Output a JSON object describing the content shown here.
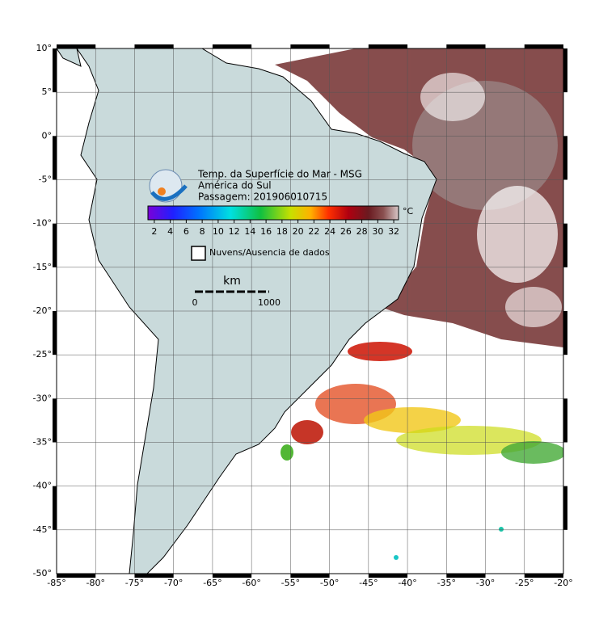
{
  "header": {
    "title": "Temp. da Superfície do Mar - MSG",
    "region": "América do Sul",
    "pass": "Passagem: 201906010715"
  },
  "map": {
    "lon_range": [
      -85,
      -20
    ],
    "lat_range": [
      -50,
      10
    ],
    "lon_ticks": [
      {
        "value": -85,
        "label": "-85°"
      },
      {
        "value": -80,
        "label": "-80°"
      },
      {
        "value": -75,
        "label": "-75°"
      },
      {
        "value": -70,
        "label": "-70°"
      },
      {
        "value": -65,
        "label": "-65°"
      },
      {
        "value": -60,
        "label": "-60°"
      },
      {
        "value": -55,
        "label": "-55°"
      },
      {
        "value": -50,
        "label": "-50°"
      },
      {
        "value": -45,
        "label": "-45°"
      },
      {
        "value": -40,
        "label": "-40°"
      },
      {
        "value": -35,
        "label": "-35°"
      },
      {
        "value": -30,
        "label": "-30°"
      },
      {
        "value": -25,
        "label": "-25°"
      },
      {
        "value": -20,
        "label": "-20°"
      }
    ],
    "lat_ticks": [
      {
        "value": 10,
        "label": "10°"
      },
      {
        "value": 5,
        "label": "5°"
      },
      {
        "value": 0,
        "label": "0°"
      },
      {
        "value": -5,
        "label": "-5°"
      },
      {
        "value": -10,
        "label": "-10°"
      },
      {
        "value": -15,
        "label": "-15°"
      },
      {
        "value": -20,
        "label": "-20°"
      },
      {
        "value": -25,
        "label": "-25°"
      },
      {
        "value": -30,
        "label": "-30°"
      },
      {
        "value": -35,
        "label": "-35°"
      },
      {
        "value": -40,
        "label": "-40°"
      },
      {
        "value": -45,
        "label": "-45°"
      },
      {
        "value": -50,
        "label": "-50°"
      }
    ]
  },
  "colorbar": {
    "range": [
      1.2,
      32.6
    ],
    "ticks": [
      2,
      4,
      6,
      8,
      10,
      12,
      14,
      16,
      18,
      20,
      22,
      24,
      26,
      28,
      30,
      32
    ],
    "unit": "°C"
  },
  "legend": {
    "no_data": "Nuvens/Ausencia de dados"
  },
  "scale_bar": {
    "unit": "km",
    "start": 0,
    "end": 1000
  }
}
